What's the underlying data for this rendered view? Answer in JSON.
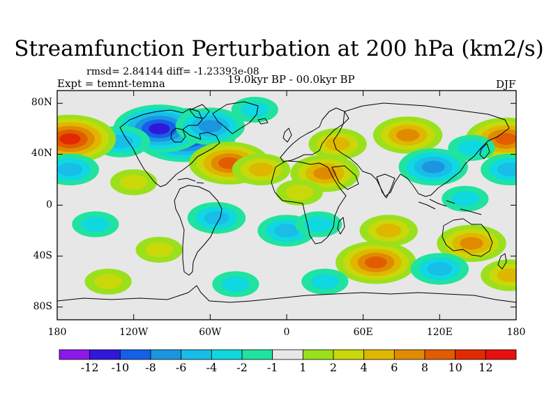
{
  "title": "Streamfunction Perturbation at 200 hPa (km2/s)",
  "stats": "rmsd= 2.84144  diff= -1.23393e-08",
  "left_subtitle": "Expt = temnt-temna",
  "center_subtitle": "19.0kyr BP - 00.0kyr BP",
  "right_subtitle": "DJF",
  "map": {
    "projection": "cylindrical equidistant",
    "lon_range": [
      -180,
      180
    ],
    "lat_range": [
      -90,
      90
    ],
    "lat_ticks": [
      {
        "label": "80N",
        "lat": 80
      },
      {
        "label": "40N",
        "lat": 40
      },
      {
        "label": "0",
        "lat": 0
      },
      {
        "label": "40S",
        "lat": -40
      },
      {
        "label": "80S",
        "lat": -80
      }
    ],
    "lon_ticks": [
      {
        "label": "180",
        "lon": -180
      },
      {
        "label": "120W",
        "lon": -120
      },
      {
        "label": "60W",
        "lon": -60
      },
      {
        "label": "0",
        "lon": 0
      },
      {
        "label": "60E",
        "lon": 60
      },
      {
        "label": "120E",
        "lon": 120
      },
      {
        "label": "180",
        "lon": 180
      }
    ],
    "features": [
      {
        "lon": -80,
        "lat": 55,
        "level": -12,
        "name": "hudson-bay-low"
      },
      {
        "lon": -100,
        "lat": 60,
        "level": -10,
        "name": "canada-low"
      },
      {
        "lon": -60,
        "lat": 62,
        "level": -6,
        "name": "labrador-low"
      },
      {
        "lon": -130,
        "lat": 50,
        "level": -4,
        "name": "ne-pacific-low"
      },
      {
        "lon": -25,
        "lat": 75,
        "level": -2,
        "name": "greenland-low"
      },
      {
        "lon": -170,
        "lat": 52,
        "level": 10,
        "name": "aleutian-high"
      },
      {
        "lon": 172,
        "lat": 52,
        "level": 8,
        "name": "bering-high"
      },
      {
        "lon": -45,
        "lat": 33,
        "level": 8,
        "name": "north-atlantic-high"
      },
      {
        "lon": -20,
        "lat": 28,
        "level": 4,
        "name": "east-atlantic-high"
      },
      {
        "lon": -120,
        "lat": 18,
        "level": 2,
        "name": "east-pacific-high"
      },
      {
        "lon": 40,
        "lat": 48,
        "level": 4,
        "name": "western-eurasia-high"
      },
      {
        "lon": 95,
        "lat": 55,
        "level": 6,
        "name": "siberian-high"
      },
      {
        "lon": 30,
        "lat": 25,
        "level": 6,
        "name": "arabia-high"
      },
      {
        "lon": 10,
        "lat": 10,
        "level": 2,
        "name": "sahara-high"
      },
      {
        "lon": -170,
        "lat": 28,
        "level": -4,
        "name": "central-pacific-low"
      },
      {
        "lon": 175,
        "lat": 28,
        "level": -4,
        "name": "dateline-low"
      },
      {
        "lon": 115,
        "lat": 30,
        "level": -6,
        "name": "east-asia-low"
      },
      {
        "lon": 145,
        "lat": 45,
        "level": -2,
        "name": "nw-pacific-low"
      },
      {
        "lon": 140,
        "lat": 5,
        "level": -2,
        "name": "maritime-low"
      },
      {
        "lon": -55,
        "lat": -10,
        "level": -4,
        "name": "brazil-low"
      },
      {
        "lon": 0,
        "lat": -20,
        "level": -4,
        "name": "south-atlantic-low"
      },
      {
        "lon": 25,
        "lat": -15,
        "level": -2,
        "name": "southern-africa-low"
      },
      {
        "lon": -150,
        "lat": -15,
        "level": -2,
        "name": "south-pacific-low"
      },
      {
        "lon": 70,
        "lat": -45,
        "level": 8,
        "name": "indian-ocean-high"
      },
      {
        "lon": 80,
        "lat": -20,
        "level": 4,
        "name": "south-indian-high"
      },
      {
        "lon": 145,
        "lat": -30,
        "level": 6,
        "name": "australia-high"
      },
      {
        "lon": 175,
        "lat": -55,
        "level": 4,
        "name": "tasman-high"
      },
      {
        "lon": -100,
        "lat": -35,
        "level": 2,
        "name": "se-pacific-high"
      },
      {
        "lon": 120,
        "lat": -50,
        "level": -4,
        "name": "southern-ocean-low"
      },
      {
        "lon": -140,
        "lat": -60,
        "level": 2,
        "name": "amundsen-high"
      },
      {
        "lon": -40,
        "lat": -62,
        "level": -2,
        "name": "weddell-low"
      },
      {
        "lon": 30,
        "lat": -60,
        "level": -2,
        "name": "sw-indian-low"
      }
    ]
  },
  "colorbar": {
    "labels": [
      "-12",
      "-10",
      "-8",
      "-6",
      "-4",
      "-2",
      "-1",
      "1",
      "2",
      "4",
      "6",
      "8",
      "10",
      "12"
    ],
    "colors": [
      "#8c19e8",
      "#3118d8",
      "#1460e8",
      "#1c95e0",
      "#18bde8",
      "#10d8e0",
      "#20e3a0",
      "#e7e7e7",
      "#9ae01c",
      "#c8d808",
      "#dfb600",
      "#e08a00",
      "#e25c00",
      "#e22a00",
      "#e81010"
    ]
  }
}
